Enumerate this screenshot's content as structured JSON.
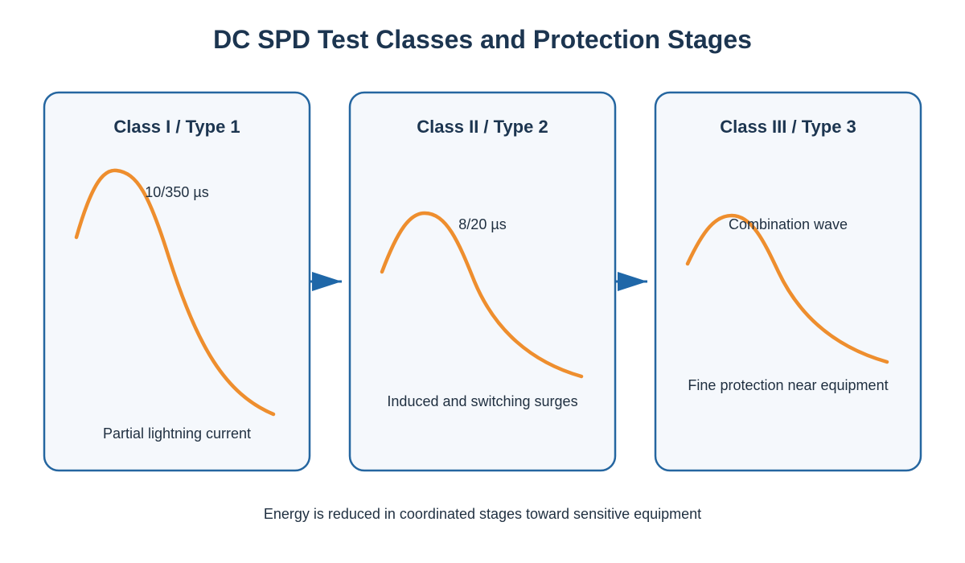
{
  "title": "DC SPD Test Classes and Protection Stages",
  "panels": [
    {
      "title": "Class I / Type 1",
      "waveform": "10/350 µs",
      "description": "Partial lightning current"
    },
    {
      "title": "Class II / Type 2",
      "waveform": "8/20 µs",
      "description": "Induced and switching surges"
    },
    {
      "title": "Class III / Type 3",
      "waveform": "Combination wave",
      "description": "Fine protection near equipment"
    }
  ],
  "footer": "Energy is reduced in coordinated stages toward sensitive equipment",
  "colors": {
    "title": "#1c3550",
    "panel_border": "#2566a0",
    "panel_fill": "#f5f8fc",
    "curve": "#ee8e2e",
    "arrow": "#1f67a8",
    "text": "#1f2f40"
  }
}
